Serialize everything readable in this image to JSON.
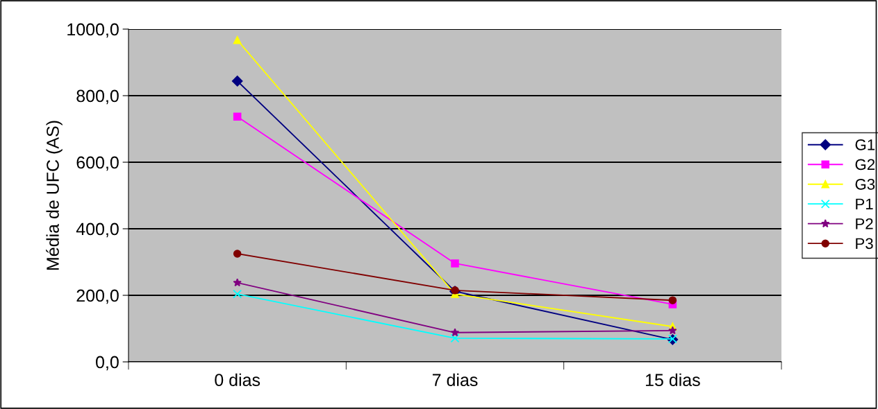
{
  "chart_data": {
    "type": "line",
    "ylabel": "Média de UFC (AS)",
    "categories": [
      "0 dias",
      "7 dias",
      "15 dias"
    ],
    "series": [
      {
        "name": "G1",
        "color": "#000080",
        "marker": "diamond",
        "values": [
          844,
          212,
          67
        ]
      },
      {
        "name": "G2",
        "color": "#ff00ff",
        "marker": "square",
        "values": [
          737,
          296,
          173
        ]
      },
      {
        "name": "G3",
        "color": "#ffff00",
        "marker": "triangle",
        "values": [
          967,
          204,
          106
        ]
      },
      {
        "name": "P1",
        "color": "#00ffff",
        "marker": "cross",
        "values": [
          204,
          71,
          69
        ]
      },
      {
        "name": "P2",
        "color": "#800080",
        "marker": "star",
        "values": [
          238,
          88,
          94
        ]
      },
      {
        "name": "P3",
        "color": "#800000",
        "marker": "circle",
        "values": [
          325,
          215,
          185
        ]
      }
    ],
    "ylim": [
      0,
      1000
    ],
    "yticks": [
      {
        "value": 0,
        "label": "0,0"
      },
      {
        "value": 200,
        "label": "200,0"
      },
      {
        "value": 400,
        "label": "400,0"
      },
      {
        "value": 600,
        "label": "600,0"
      },
      {
        "value": 800,
        "label": "800,0"
      },
      {
        "value": 1000,
        "label": "1000,0"
      }
    ],
    "grid": "y",
    "legend": "right"
  }
}
